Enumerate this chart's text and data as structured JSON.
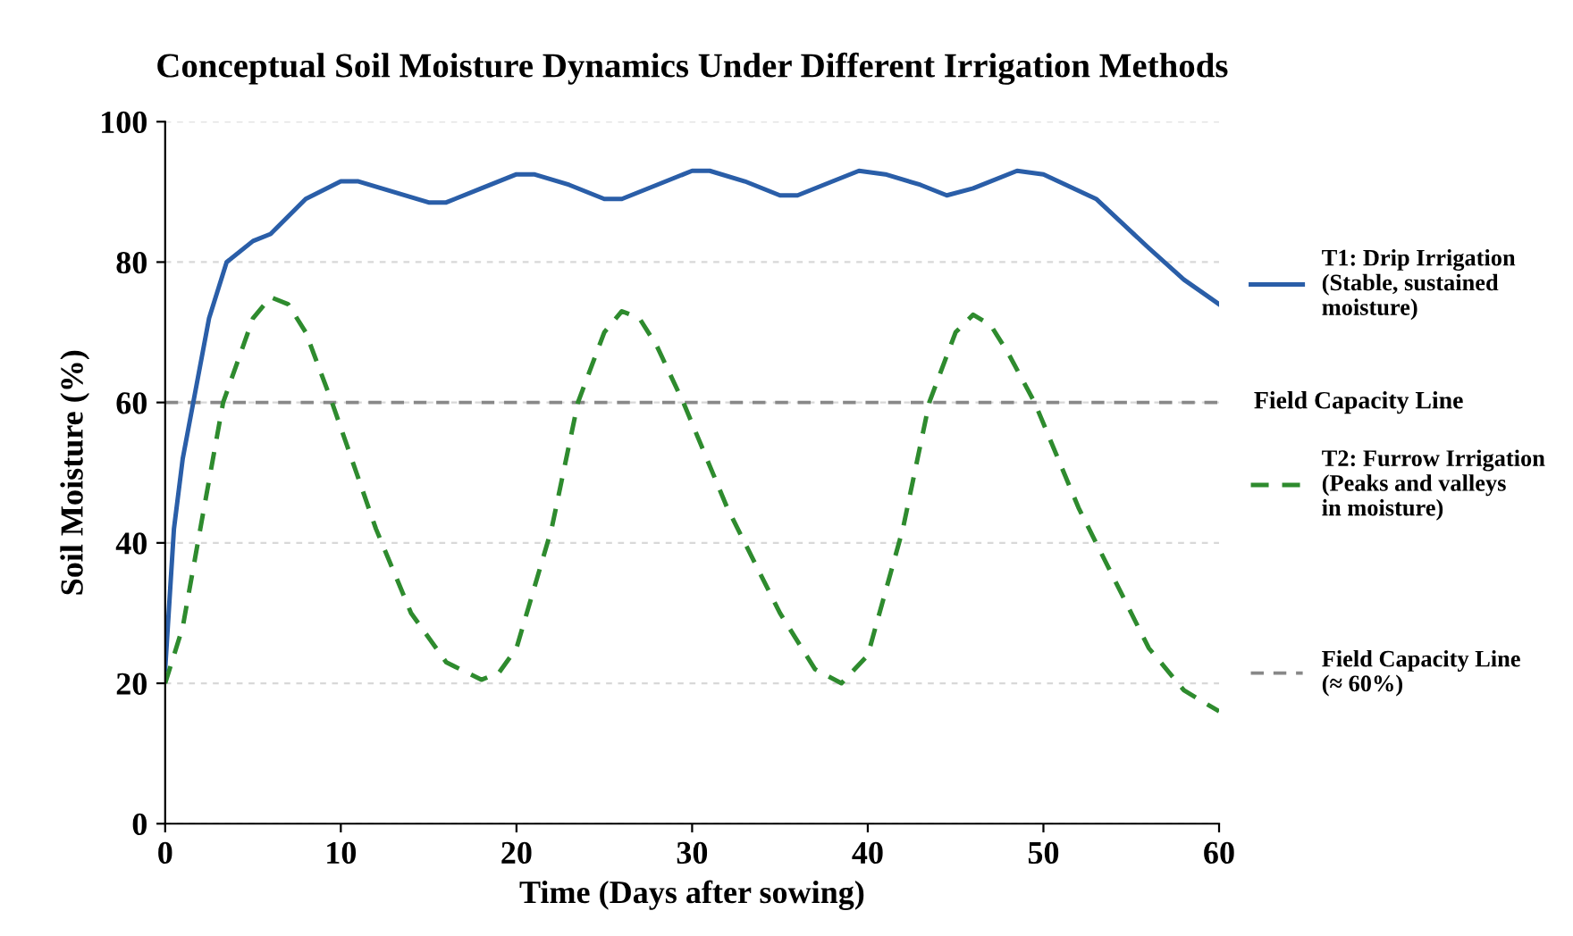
{
  "chart_data": {
    "type": "line",
    "title": "Conceptual Soil Moisture Dynamics Under Different Irrigation Methods",
    "xlabel": "Time (Days after sowing)",
    "ylabel": "Soil Moisture (%)",
    "xlim": [
      0,
      60
    ],
    "ylim": [
      0,
      100
    ],
    "xticks": [
      0,
      10,
      20,
      30,
      40,
      50,
      60
    ],
    "yticks": [
      0,
      20,
      40,
      60,
      80,
      100
    ],
    "grid": "y",
    "legend": "right",
    "series": [
      {
        "name": "T1: Drip Irrigation\n(Stable, sustained\nmoisture)",
        "color": "#2a5ea8",
        "line_style": "solid",
        "x": [
          0,
          0.5,
          1,
          1.6,
          2.5,
          3.5,
          5,
          6,
          8,
          10,
          11,
          13,
          15,
          16,
          18,
          20,
          21,
          23,
          25,
          26,
          28,
          30,
          31,
          33,
          35,
          36,
          38,
          39.5,
          41,
          43,
          44.5,
          46,
          48.5,
          50,
          53,
          56,
          58,
          60
        ],
        "values": [
          22,
          42,
          52,
          60,
          72,
          80,
          83,
          84,
          89,
          91.5,
          91.5,
          90,
          88.5,
          88.5,
          90.5,
          92.5,
          92.5,
          91,
          89,
          89,
          91,
          93,
          93,
          91.5,
          89.5,
          89.5,
          91.5,
          93,
          92.5,
          91,
          89.5,
          90.5,
          93,
          92.5,
          89,
          82,
          77.5,
          74
        ]
      },
      {
        "name": "T2: Furrow Irrigation\n(Peaks and valleys\nin moisture)",
        "color": "#2e8b2e",
        "line_style": "dashed",
        "x": [
          0,
          1,
          2,
          3.3,
          5,
          6,
          7,
          8,
          9.5,
          12,
          14,
          16,
          18,
          19,
          20,
          22,
          23.5,
          25,
          26,
          27,
          28,
          29.5,
          32,
          35,
          37,
          38.5,
          40,
          42,
          43.5,
          45,
          46,
          47,
          48,
          49.5,
          52,
          54,
          56,
          58,
          60
        ],
        "values": [
          20,
          28,
          42,
          60,
          72,
          75,
          74,
          70,
          60,
          42,
          30,
          23,
          20.5,
          21.5,
          25,
          42,
          60,
          70,
          73,
          72,
          68,
          60,
          45,
          30,
          22,
          20,
          24,
          42,
          60,
          70,
          72.5,
          71,
          67,
          60,
          45,
          35,
          25,
          19,
          16
        ]
      }
    ],
    "ref_lines": [
      {
        "axis": "y",
        "value": 60,
        "label": "Field Capacity Line",
        "color": "#888888",
        "line_style": "dashed"
      }
    ],
    "annotations": [
      "Field Capacity Line\n(≈ 60%)"
    ]
  }
}
